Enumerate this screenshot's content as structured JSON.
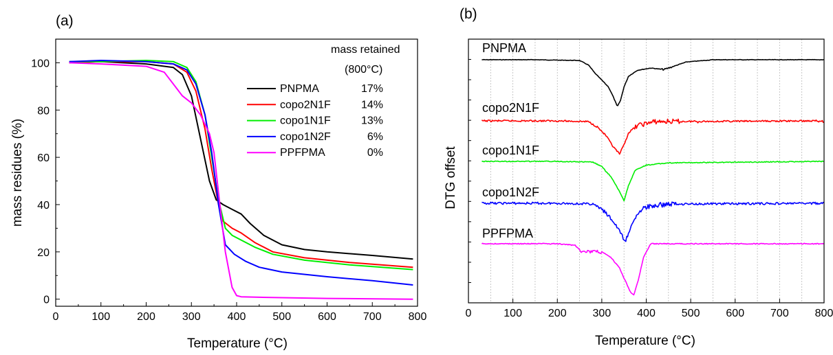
{
  "figure": {
    "colors": {
      "PNPMA": "#000000",
      "copo2N1F": "#ff0000",
      "copo1N1F": "#00ee00",
      "copo1N2F": "#0000ff",
      "PPFPMA": "#ff00ff"
    }
  },
  "chart_data": [
    {
      "panel_label": "(a)",
      "type": "line",
      "xlabel": "Temperature (°C)",
      "ylabel": "mass residues (%)",
      "xlim": [
        0,
        800
      ],
      "ylim": [
        -3,
        110
      ],
      "x_ticks": [
        0,
        100,
        200,
        300,
        400,
        500,
        600,
        700,
        800
      ],
      "y_ticks": [
        0,
        20,
        40,
        60,
        80,
        100
      ],
      "grid": false,
      "legend": {
        "placement": "top-right",
        "title_line1": "mass retained",
        "title_line2": "(800°C)",
        "entries": [
          {
            "name": "PNPMA",
            "value": "17%"
          },
          {
            "name": "copo2N1F",
            "value": "14%"
          },
          {
            "name": "copo1N1F",
            "value": "13%"
          },
          {
            "name": "copo1N2F",
            "value": "6%"
          },
          {
            "name": "PPFPMA",
            "value": "0%"
          }
        ]
      },
      "series": [
        {
          "name": "PNPMA",
          "x": [
            30,
            100,
            200,
            260,
            280,
            300,
            320,
            340,
            355,
            370,
            390,
            410,
            430,
            460,
            500,
            550,
            600,
            700,
            790
          ],
          "y": [
            100,
            100.5,
            99.5,
            98,
            95,
            86,
            68,
            50,
            42,
            40,
            38,
            36,
            32,
            27,
            23,
            21,
            20,
            18.5,
            17
          ]
        },
        {
          "name": "copo2N1F",
          "x": [
            30,
            100,
            200,
            260,
            290,
            310,
            330,
            345,
            360,
            370,
            390,
            410,
            440,
            480,
            550,
            650,
            790
          ],
          "y": [
            100,
            100.5,
            100.5,
            99.5,
            96,
            88,
            72,
            55,
            40,
            33,
            30,
            28,
            24,
            20,
            17.5,
            15.5,
            13.5
          ]
        },
        {
          "name": "copo1N1F",
          "x": [
            30,
            100,
            200,
            260,
            290,
            310,
            330,
            345,
            360,
            375,
            390,
            410,
            440,
            480,
            550,
            650,
            790
          ],
          "y": [
            100.5,
            100.5,
            101,
            100.5,
            98,
            92,
            78,
            60,
            42,
            30,
            27,
            25,
            22,
            19,
            16.5,
            14.5,
            12.5
          ]
        },
        {
          "name": "copo1N2F",
          "x": [
            30,
            100,
            200,
            260,
            290,
            310,
            330,
            345,
            360,
            375,
            395,
            420,
            450,
            500,
            600,
            700,
            790
          ],
          "y": [
            100.5,
            101,
            100.5,
            99.5,
            97,
            91,
            78,
            62,
            40,
            23,
            19,
            16,
            13.5,
            11.5,
            9.5,
            7.8,
            6
          ]
        },
        {
          "name": "PPFPMA",
          "x": [
            30,
            100,
            200,
            240,
            260,
            280,
            300,
            320,
            340,
            350,
            360,
            375,
            390,
            400,
            410,
            450,
            600,
            790
          ],
          "y": [
            100,
            99.5,
            98.5,
            96,
            91,
            86,
            83,
            78,
            70,
            62,
            45,
            20,
            5,
            1.5,
            1,
            0.8,
            0.3,
            0
          ]
        }
      ]
    },
    {
      "panel_label": "(b)",
      "type": "line",
      "xlabel": "Temperature (°C)",
      "ylabel": "DTG offset",
      "xlim": [
        0,
        800
      ],
      "x_ticks": [
        0,
        100,
        200,
        300,
        400,
        500,
        600,
        700,
        800
      ],
      "x_gridlines": [
        50,
        100,
        150,
        200,
        250,
        300,
        350,
        400,
        450,
        500,
        550,
        600,
        650,
        700,
        750
      ],
      "grid": true,
      "series": [
        {
          "name": "PNPMA",
          "baseline_rank": 0,
          "x": [
            30,
            150,
            250,
            270,
            285,
            300,
            315,
            325,
            335,
            342,
            350,
            360,
            380,
            410,
            440,
            460,
            490,
            550,
            800
          ],
          "dip": [
            0,
            0,
            0.05,
            0.35,
            0.9,
            1.35,
            1.8,
            2.4,
            3.1,
            2.7,
            1.8,
            1.1,
            0.7,
            0.55,
            0.65,
            0.45,
            0.15,
            0,
            0
          ]
        },
        {
          "name": "copo2N1F",
          "baseline_rank": 1,
          "x": [
            30,
            200,
            270,
            290,
            310,
            325,
            340,
            350,
            360,
            380,
            420,
            800
          ],
          "dip": [
            0,
            0,
            0.05,
            0.4,
            1,
            1.7,
            2.2,
            1.6,
            0.8,
            0.3,
            0.05,
            0
          ]
        },
        {
          "name": "copo1N1F",
          "baseline_rank": 2,
          "x": [
            30,
            200,
            280,
            300,
            320,
            340,
            350,
            360,
            375,
            400,
            450,
            800
          ],
          "dip": [
            0,
            0,
            0.05,
            0.35,
            1.0,
            2.0,
            2.6,
            1.6,
            0.6,
            0.25,
            0.1,
            0
          ]
        },
        {
          "name": "copo1N2F",
          "baseline_rank": 3,
          "x": [
            30,
            200,
            280,
            300,
            320,
            340,
            352,
            365,
            380,
            400,
            450,
            800
          ],
          "dip": [
            0,
            0,
            0.05,
            0.4,
            1.0,
            1.8,
            2.6,
            1.6,
            0.7,
            0.25,
            0.05,
            0
          ]
        },
        {
          "name": "PPFPMA",
          "baseline_rank": 4,
          "x": [
            30,
            200,
            240,
            255,
            300,
            320,
            340,
            355,
            365,
            372,
            382,
            395,
            410,
            800
          ],
          "dip": [
            0,
            0,
            0.1,
            0.5,
            0.55,
            0.9,
            1.6,
            2.6,
            3.2,
            3.4,
            2.4,
            0.8,
            0,
            0
          ]
        }
      ]
    }
  ]
}
